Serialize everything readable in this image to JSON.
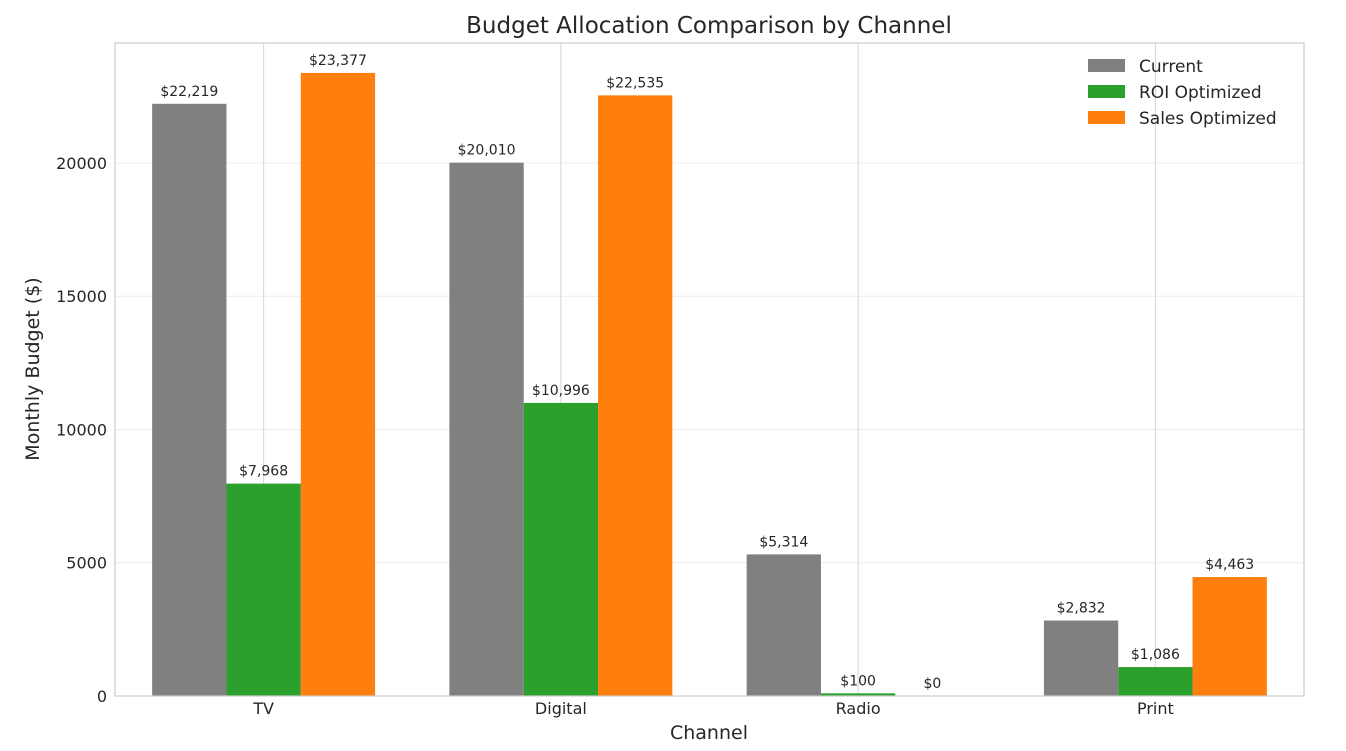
{
  "chart_data": {
    "type": "bar",
    "title": "Budget Allocation Comparison by Channel",
    "xlabel": "Channel",
    "ylabel": "Monthly Budget ($)",
    "categories": [
      "TV",
      "Digital",
      "Radio",
      "Print"
    ],
    "series": [
      {
        "name": "Current",
        "color": "#808080",
        "values": [
          22219,
          20010,
          5314,
          2832
        ],
        "labels": [
          "$22,219",
          "$20,010",
          "$5,314",
          "$2,832"
        ]
      },
      {
        "name": "ROI Optimized",
        "color": "#2ca02c",
        "values": [
          7968,
          10996,
          100,
          1086
        ],
        "labels": [
          "$7,968",
          "$10,996",
          "$100",
          "$1,086"
        ]
      },
      {
        "name": "Sales Optimized",
        "color": "#ff7f0e",
        "values": [
          23377,
          22535,
          0,
          4463
        ],
        "labels": [
          "$23,377",
          "$22,535",
          "$0",
          "$4,463"
        ]
      }
    ],
    "ylim": [
      0,
      24500
    ],
    "yticks": [
      0,
      5000,
      10000,
      15000,
      20000
    ],
    "ytick_labels": [
      "0",
      "5000",
      "10000",
      "15000",
      "20000"
    ],
    "grid": true,
    "legend_position": "top-right"
  }
}
